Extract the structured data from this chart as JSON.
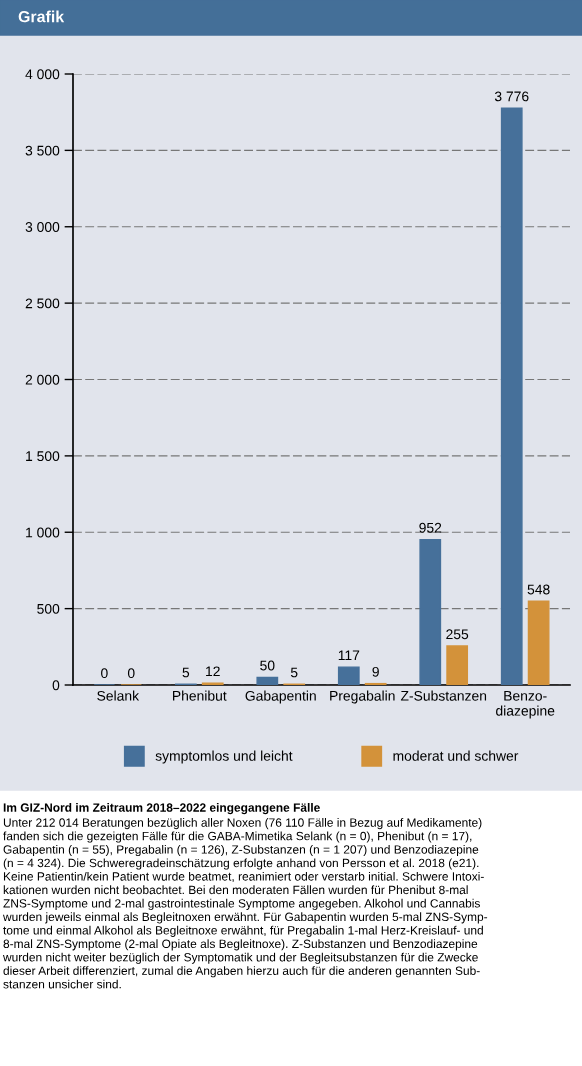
{
  "chart_data": {
    "type": "bar",
    "title": "Grafik",
    "categories": [
      "Selank",
      "Phenibut",
      "Gabapentin",
      "Pregabalin",
      "Z-Substanzen",
      "Benzo-\ndiazepine"
    ],
    "series": [
      {
        "name": "symptomlos und leicht",
        "color": "#46709a",
        "values": [
          0,
          5,
          50,
          117,
          952,
          3776
        ],
        "value_labels": [
          "0",
          "5",
          "50",
          "117",
          "952",
          "3 776"
        ]
      },
      {
        "name": "moderat und schwer",
        "color": "#d3923a",
        "values": [
          0,
          12,
          5,
          9,
          255,
          548
        ],
        "value_labels": [
          "0",
          "12",
          "5",
          "9",
          "255",
          "548"
        ]
      }
    ],
    "ylim": [
      0,
      4000
    ],
    "yticks": [
      0,
      500,
      {
        "value": 1000,
        "label": "1 000"
      },
      {
        "value": 1500,
        "label": "1 500"
      },
      {
        "value": 2000,
        "label": "2 000"
      },
      {
        "value": 2500,
        "label": "2 500"
      },
      {
        "value": 3000,
        "label": "3 000"
      },
      {
        "value": 3500,
        "label": "3 500"
      },
      {
        "value": 4000,
        "label": "4 000"
      }
    ],
    "grid": "y",
    "legend": "bottom",
    "annotations": [
      "Im GIZ-Nord im Zeitraum 2018–2022 eingegangene Fälle",
      "Unter 212 014 Beratungen bezüglich aller Noxen (76 110 Fälle in Bezug auf Medikamente)\nfanden sich die gezeigten Fälle für die GABA-Mimetika Selank (n = 0), Phenibut (n = 17),\nGabapentin (n = 55), Pregabalin (n = 126), Z-Substanzen (n = 1 207) und Benzodiazepine\n(n = 4 324). Die Schweregradeinschätzung erfolgte anhand von Persson et al. 2018 (e21).\nKeine Patientin/kein Patient wurde beatmet, reanimiert oder verstarb initial. Schwere Intoxi-\nkationen wurden nicht beobachtet. Bei den moderaten Fällen wurden für Phenibut 8-mal\nZNS-Symptome und 2-mal gastrointestinale Symptome angegeben. Alkohol und Cannabis\nwurden jeweils einmal als Begleitnoxen erwähnt. Für Gabapentin wurden 5-mal ZNS-Symp-\ntome und einmal Alkohol als Begleitnoxe erwähnt, für Pregabalin 1-mal Herz-Kreislauf- und\n8-mal ZNS-Symptome (2-mal Opiate als Begleitnoxe). Z-Substanzen und Benzodiazepine\nwurden nicht weiter bezüglich der Symptomatik und der Begleitsubstanzen für die Zwecke\ndieser Arbeit differenziert, zumal die Angaben hierzu auch für die anderen genannten Sub-\nstanzen unsicher sind."
    ]
  }
}
